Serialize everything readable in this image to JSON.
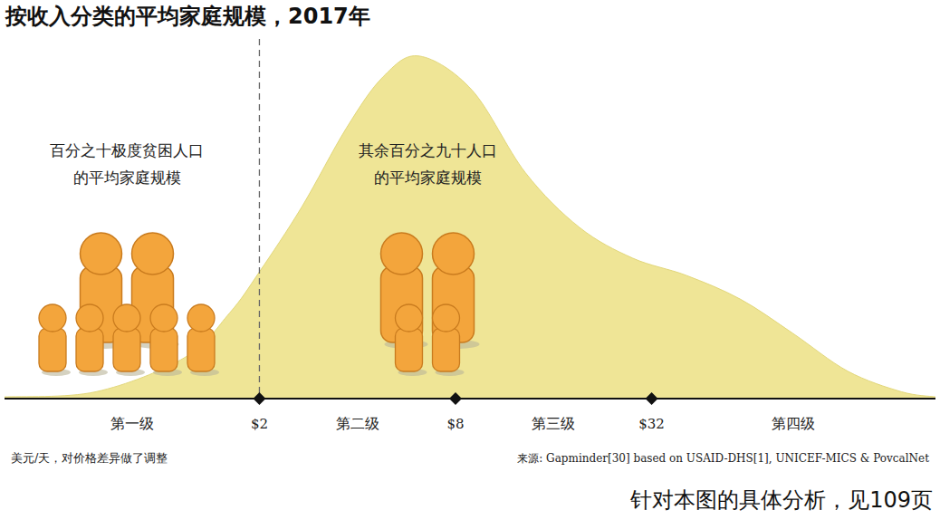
{
  "chart_data": {
    "type": "area",
    "title": "按收入分类的平均家庭规模，2017年",
    "x": [
      0.33,
      0.63,
      1.18,
      1.62,
      2,
      2.7,
      3.7,
      4.8,
      6.2,
      9.0,
      13.1,
      19.2,
      28,
      40.8,
      60,
      87,
      128,
      187,
      238
    ],
    "values": [
      0.5,
      2,
      12,
      25,
      37,
      56,
      79,
      94,
      100,
      90,
      66,
      50,
      41,
      36,
      29,
      19,
      8,
      2,
      0.5
    ],
    "color": "#efe596",
    "log": "x",
    "grid": false,
    "tick_labels": "x",
    "xlim": [
      0.33,
      238
    ],
    "ylim": [
      0,
      105
    ],
    "xticks": [
      {
        "value": 2,
        "label": "$2"
      },
      {
        "value": 8,
        "label": "$8"
      },
      {
        "value": 32,
        "label": "$32"
      }
    ],
    "levels": [
      "第一级",
      "第二级",
      "第三级",
      "第四级"
    ],
    "poverty_line": 2,
    "households": [
      {
        "label": [
          "百分之十极度贫困人口",
          "的平均家庭规模"
        ],
        "adults": 2,
        "children": 5
      },
      {
        "label": [
          "其余百分之九十人口",
          "的平均家庭规模"
        ],
        "adults": 2,
        "children": 2
      }
    ],
    "note": "美元/天，对价格差异做了调整",
    "source": "来源: Gapminder[30] based on USAID-DHS[1], UNICEF-MICS & PovcalNet",
    "footer": "针对本图的具体分析，见109页"
  }
}
